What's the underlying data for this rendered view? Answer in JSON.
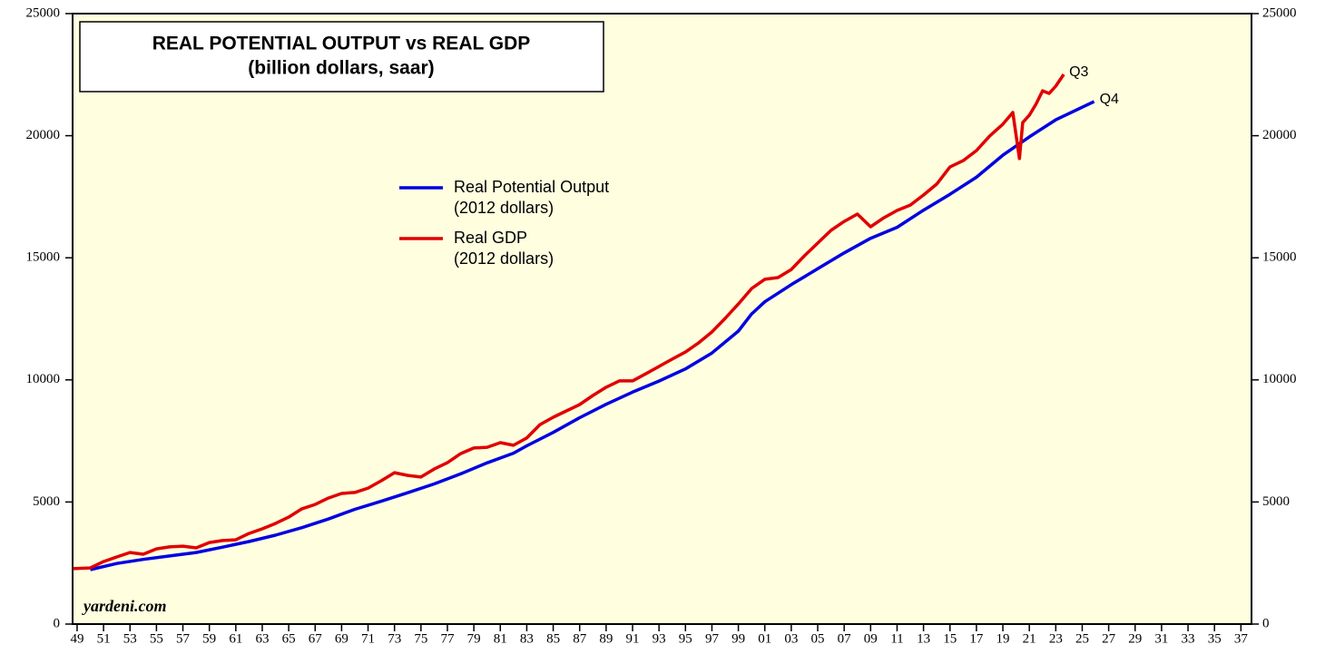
{
  "chart_data": {
    "type": "line",
    "title": "REAL POTENTIAL OUTPUT vs REAL GDP",
    "subtitle": "(billion dollars, saar)",
    "source": "yardeni.com",
    "xlim": [
      1948.66,
      2037.8
    ],
    "xticks": [
      {
        "value": 1949,
        "label": "49"
      },
      {
        "value": 1951,
        "label": "51"
      },
      {
        "value": 1953,
        "label": "53"
      },
      {
        "value": 1955,
        "label": "55"
      },
      {
        "value": 1957,
        "label": "57"
      },
      {
        "value": 1959,
        "label": "59"
      },
      {
        "value": 1961,
        "label": "61"
      },
      {
        "value": 1963,
        "label": "63"
      },
      {
        "value": 1965,
        "label": "65"
      },
      {
        "value": 1967,
        "label": "67"
      },
      {
        "value": 1969,
        "label": "69"
      },
      {
        "value": 1971,
        "label": "71"
      },
      {
        "value": 1973,
        "label": "73"
      },
      {
        "value": 1975,
        "label": "75"
      },
      {
        "value": 1977,
        "label": "77"
      },
      {
        "value": 1979,
        "label": "79"
      },
      {
        "value": 1981,
        "label": "81"
      },
      {
        "value": 1983,
        "label": "83"
      },
      {
        "value": 1985,
        "label": "85"
      },
      {
        "value": 1987,
        "label": "87"
      },
      {
        "value": 1989,
        "label": "89"
      },
      {
        "value": 1991,
        "label": "91"
      },
      {
        "value": 1993,
        "label": "93"
      },
      {
        "value": 1995,
        "label": "95"
      },
      {
        "value": 1997,
        "label": "97"
      },
      {
        "value": 1999,
        "label": "99"
      },
      {
        "value": 2001,
        "label": "01"
      },
      {
        "value": 2003,
        "label": "03"
      },
      {
        "value": 2005,
        "label": "05"
      },
      {
        "value": 2007,
        "label": "07"
      },
      {
        "value": 2009,
        "label": "09"
      },
      {
        "value": 2011,
        "label": "11"
      },
      {
        "value": 2013,
        "label": "13"
      },
      {
        "value": 2015,
        "label": "15"
      },
      {
        "value": 2017,
        "label": "17"
      },
      {
        "value": 2019,
        "label": "19"
      },
      {
        "value": 2021,
        "label": "21"
      },
      {
        "value": 2023,
        "label": "23"
      },
      {
        "value": 2025,
        "label": "25"
      },
      {
        "value": 2027,
        "label": "27"
      },
      {
        "value": 2029,
        "label": "29"
      },
      {
        "value": 2031,
        "label": "31"
      },
      {
        "value": 2033,
        "label": "33"
      },
      {
        "value": 2035,
        "label": "35"
      },
      {
        "value": 2037,
        "label": "37"
      }
    ],
    "ylim": [
      0,
      25000
    ],
    "yticks": [
      0,
      5000,
      10000,
      15000,
      20000,
      25000
    ],
    "y2lim": [
      0,
      25000
    ],
    "y2ticks": [
      0,
      5000,
      10000,
      15000,
      20000,
      25000
    ],
    "series": [
      {
        "name": "Real Potential Output",
        "name_note": "(2012 dollars)",
        "color": "#0000e0",
        "end_label": "Q4",
        "x": [
          1950,
          1952,
          1954,
          1956,
          1958,
          1960,
          1962,
          1964,
          1966,
          1968,
          1970,
          1972,
          1974,
          1976,
          1978,
          1980,
          1982,
          1983,
          1985,
          1987,
          1989,
          1991,
          1993,
          1995,
          1997,
          1999,
          2000,
          2001,
          2003,
          2005,
          2007,
          2009,
          2011,
          2013,
          2015,
          2017,
          2019,
          2021,
          2023,
          2025.9
        ],
        "values": [
          2230,
          2480,
          2650,
          2790,
          2930,
          3150,
          3380,
          3640,
          3950,
          4300,
          4700,
          5030,
          5380,
          5740,
          6150,
          6600,
          7000,
          7300,
          7850,
          8450,
          9000,
          9500,
          9950,
          10450,
          11100,
          12000,
          12700,
          13200,
          13900,
          14550,
          15200,
          15800,
          16250,
          16950,
          17600,
          18300,
          19200,
          19950,
          20650,
          21400
        ]
      },
      {
        "name": "Real GDP",
        "name_note": "(2012 dollars)",
        "color": "#e00000",
        "end_label": "Q3",
        "x": [
          1948.7,
          1950,
          1951,
          1952,
          1953,
          1954,
          1955,
          1956,
          1957,
          1958,
          1959,
          1960,
          1961,
          1962,
          1963,
          1964,
          1965,
          1966,
          1967,
          1968,
          1969,
          1970,
          1971,
          1972,
          1973,
          1974,
          1975,
          1976,
          1977,
          1978,
          1979,
          1980,
          1981,
          1982,
          1983,
          1984,
          1985,
          1986,
          1987,
          1988,
          1989,
          1990,
          1991,
          1992,
          1993,
          1994,
          1995,
          1996,
          1997,
          1998,
          1999,
          2000,
          2001,
          2002,
          2003,
          2004,
          2005,
          2006,
          2007,
          2008,
          2009,
          2010,
          2011,
          2012,
          2013,
          2014,
          2015,
          2016,
          2017,
          2018,
          2019,
          2019.75,
          2020.25,
          2020.5,
          2021,
          2021.5,
          2022,
          2022.5,
          2023,
          2023.6
        ],
        "values": [
          2270,
          2300,
          2560,
          2750,
          2930,
          2860,
          3080,
          3160,
          3190,
          3120,
          3340,
          3420,
          3450,
          3710,
          3900,
          4120,
          4380,
          4720,
          4900,
          5160,
          5350,
          5390,
          5570,
          5870,
          6200,
          6090,
          6020,
          6350,
          6610,
          6980,
          7210,
          7240,
          7430,
          7320,
          7620,
          8170,
          8470,
          8730,
          8990,
          9360,
          9700,
          9960,
          9960,
          10250,
          10550,
          10850,
          11140,
          11520,
          11960,
          12520,
          13110,
          13740,
          14120,
          14190,
          14520,
          15080,
          15600,
          16120,
          16490,
          16790,
          16270,
          16640,
          16940,
          17160,
          17570,
          18020,
          18720,
          18980,
          19390,
          19990,
          20470,
          20950,
          19060,
          20540,
          20840,
          21290,
          21840,
          21730,
          22030,
          22510
        ]
      }
    ]
  }
}
